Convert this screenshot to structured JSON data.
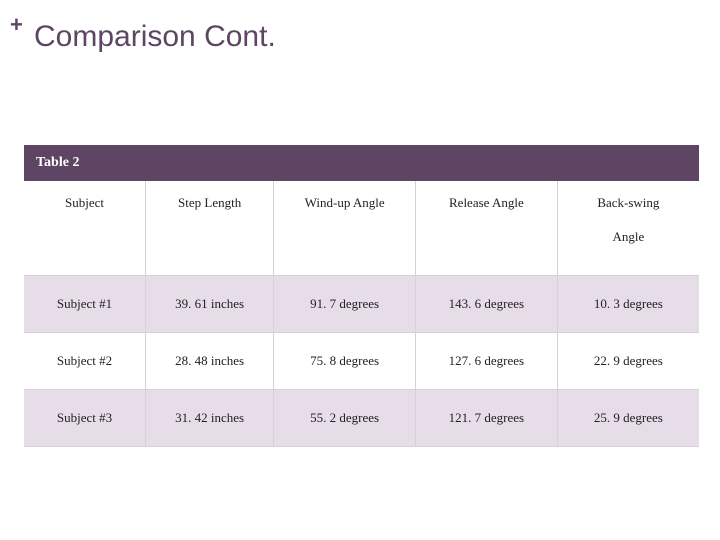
{
  "title": "Comparison Cont.",
  "plus_symbol": "+",
  "table": {
    "caption": "Table 2",
    "header_bg": "#5d4563",
    "header_text_color": "#ffffff",
    "row_alt_bg": "#e6dde8",
    "row_bg": "#ffffff",
    "border_color": "#d6d0d8",
    "title_color": "#5d4563",
    "font_family": "Georgia, serif",
    "columns": [
      {
        "label": "Subject",
        "sub": ""
      },
      {
        "label": "Step Length",
        "sub": ""
      },
      {
        "label": "Wind-up Angle",
        "sub": ""
      },
      {
        "label": "Release Angle",
        "sub": ""
      },
      {
        "label": "Back-swing",
        "sub": "Angle"
      }
    ],
    "rows": [
      [
        "Subject #1",
        "39. 61 inches",
        "91. 7 degrees",
        "143. 6 degrees",
        "10. 3 degrees"
      ],
      [
        "Subject #2",
        "28. 48 inches",
        "75. 8 degrees",
        "127. 6 degrees",
        "22. 9 degrees"
      ],
      [
        "Subject #3",
        "31. 42 inches",
        "55. 2 degrees",
        "121. 7 degrees",
        "25. 9 degrees"
      ]
    ]
  }
}
